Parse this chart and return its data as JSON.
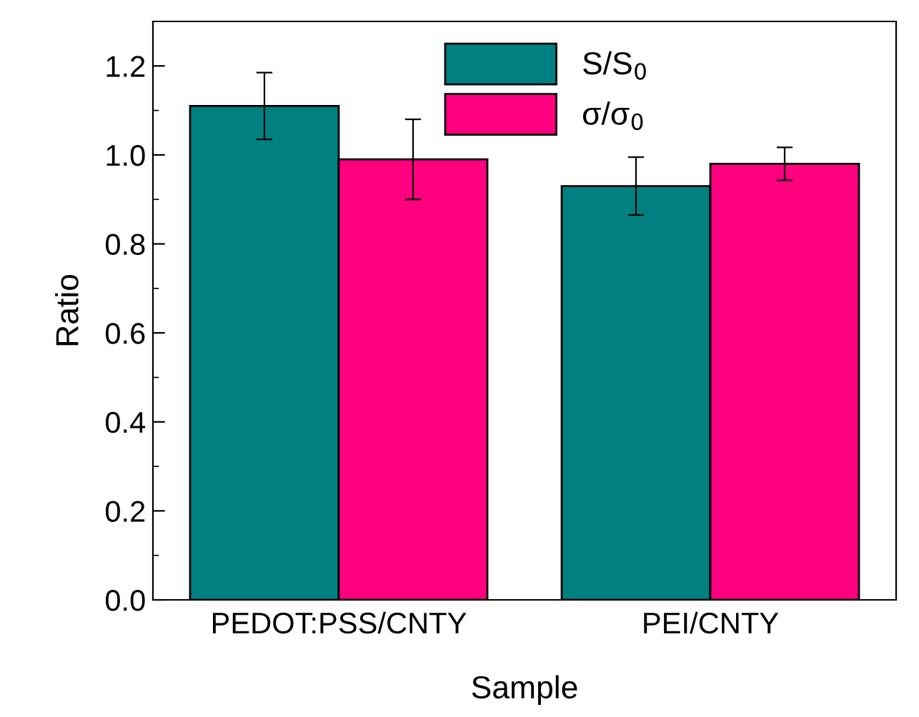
{
  "chart_data": {
    "type": "bar",
    "xlabel": "Sample",
    "ylabel": "Ratio",
    "categories": [
      "PEDOT:PSS/CNTY",
      "PEI/CNTY"
    ],
    "series": [
      {
        "name": "S/S$_{0}$",
        "color": "#008080",
        "values": [
          1.11,
          0.93
        ],
        "errors": [
          0.075,
          0.065
        ]
      },
      {
        "name": "σ/σ$_{0}$",
        "color": "#ff0080",
        "values": [
          0.99,
          0.98
        ],
        "errors": [
          0.09,
          0.037
        ]
      }
    ],
    "ylim": [
      0,
      1.3
    ],
    "yticks": [
      {
        "value": 0,
        "label": "0.0"
      },
      0.2,
      0.4,
      0.6,
      0.8,
      {
        "value": 1,
        "label": "1.0"
      },
      1.2
    ],
    "grid": false,
    "legend": "top"
  }
}
